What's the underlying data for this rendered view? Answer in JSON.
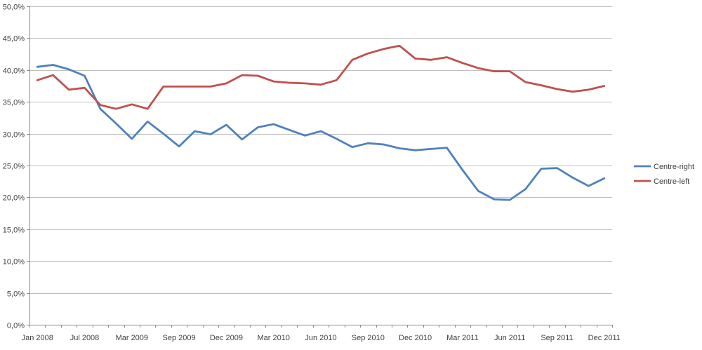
{
  "chart_data": {
    "type": "line",
    "title": "",
    "xlabel": "",
    "ylabel": "",
    "y_axis": {
      "min": 0,
      "max": 50,
      "step": 5,
      "tick_labels_top_to_bottom": [
        "50,0%",
        "45,0%",
        "40,0%",
        "35,0%",
        "30,0%",
        "25,0%",
        "20,0%",
        "15,0%",
        "10,0%",
        "5,0%",
        "0,0%"
      ]
    },
    "x_axis": {
      "n_points": 37,
      "label_every": 3,
      "tick_labels": [
        "Jan 2008",
        "Jul 2008",
        "Mar 2009",
        "Sep 2009",
        "Dec 2009",
        "Mar 2010",
        "Jun 2010",
        "Sep 2010",
        "Dec 2010",
        "Mar 2011",
        "Jun 2011",
        "Sep 2011",
        "Dec 2011"
      ]
    },
    "series": [
      {
        "name": "Centre-right",
        "color": "#4F81BD",
        "values": [
          40.5,
          40.8,
          40.1,
          39.1,
          33.9,
          31.6,
          29.2,
          31.9,
          30.0,
          28.0,
          30.4,
          29.9,
          31.4,
          29.1,
          31.0,
          31.5,
          30.6,
          29.7,
          30.4,
          29.2,
          27.9,
          28.5,
          28.3,
          27.7,
          27.4,
          27.6,
          27.8,
          24.3,
          21.0,
          19.7,
          19.6,
          21.3,
          24.5,
          24.6,
          23.1,
          21.8,
          23.0
        ]
      },
      {
        "name": "Centre-left",
        "color": "#C0504D",
        "values": [
          38.4,
          39.2,
          36.9,
          37.2,
          34.5,
          33.9,
          34.6,
          33.9,
          37.4,
          37.4,
          37.4,
          37.4,
          37.9,
          39.2,
          39.1,
          38.2,
          38.0,
          37.9,
          37.7,
          38.4,
          41.6,
          42.6,
          43.3,
          43.8,
          41.8,
          41.6,
          42.0,
          41.1,
          40.3,
          39.8,
          39.8,
          38.1,
          37.6,
          37.0,
          36.6,
          36.9,
          37.5
        ]
      }
    ],
    "legend": {
      "position": "right",
      "entries": [
        "Centre-right",
        "Centre-left"
      ]
    },
    "gridlines": true,
    "colors": {
      "grid": "#C0C0C0",
      "axis": "#8C8C8C",
      "text": "#404040",
      "background": "#FFFFFF"
    }
  }
}
